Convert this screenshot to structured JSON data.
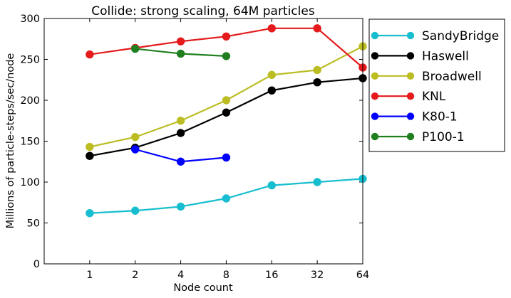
{
  "chart_data": {
    "type": "line",
    "title": "Collide: strong scaling, 64M particles",
    "xlabel": "Node count",
    "ylabel": "Millions of particle-steps/sec/node",
    "categories": [
      "1",
      "2",
      "4",
      "8",
      "16",
      "32",
      "64"
    ],
    "xlim": [
      0,
      7
    ],
    "ylim": [
      0,
      300
    ],
    "yticks": [
      0,
      50,
      100,
      150,
      200,
      250,
      300
    ],
    "grid": false,
    "legend_position": "outside-right",
    "series": [
      {
        "name": "SandyBridge",
        "color": "#17becf",
        "points": [
          [
            1,
            62
          ],
          [
            2,
            65
          ],
          [
            3,
            70
          ],
          [
            4,
            80
          ],
          [
            5,
            96
          ],
          [
            6,
            100
          ],
          [
            7,
            104
          ]
        ]
      },
      {
        "name": "Haswell",
        "color": "#000000",
        "points": [
          [
            1,
            132
          ],
          [
            2,
            142
          ],
          [
            3,
            160
          ],
          [
            4,
            185
          ],
          [
            5,
            212
          ],
          [
            6,
            222
          ],
          [
            7,
            227
          ]
        ]
      },
      {
        "name": "Broadwell",
        "color": "#bcbd22",
        "points": [
          [
            1,
            143
          ],
          [
            2,
            155
          ],
          [
            3,
            175
          ],
          [
            4,
            200
          ],
          [
            5,
            231
          ],
          [
            6,
            237
          ],
          [
            7,
            266
          ]
        ]
      },
      {
        "name": "KNL",
        "color": "#e41a1c",
        "points": [
          [
            1,
            256
          ],
          [
            2,
            264
          ],
          [
            3,
            272
          ],
          [
            4,
            278
          ],
          [
            5,
            288
          ],
          [
            6,
            288
          ],
          [
            7,
            240
          ]
        ]
      },
      {
        "name": "K80-1",
        "color": "#0000ff",
        "points": [
          [
            2,
            140
          ],
          [
            3,
            125
          ],
          [
            4,
            130
          ]
        ]
      },
      {
        "name": "P100-1",
        "color": "#1f7f1f",
        "points": [
          [
            2,
            263
          ],
          [
            3,
            257
          ],
          [
            4,
            254
          ]
        ]
      }
    ]
  }
}
